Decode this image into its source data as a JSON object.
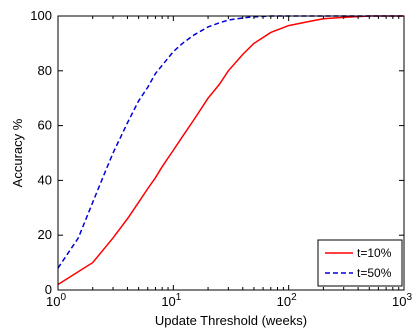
{
  "chart_data": {
    "type": "line",
    "xlabel": "Update Threshold (weeks)",
    "ylabel": "Accuracy %",
    "xscale": "log",
    "xlim": [
      1,
      1000
    ],
    "ylim": [
      0,
      100
    ],
    "xticks": [
      {
        "value": 1,
        "base": "10",
        "exp": "0"
      },
      {
        "value": 10,
        "base": "10",
        "exp": "1"
      },
      {
        "value": 100,
        "base": "10",
        "exp": "2"
      },
      {
        "value": 1000,
        "base": "10",
        "exp": "3"
      }
    ],
    "yticks": [
      0,
      20,
      40,
      60,
      80,
      100
    ],
    "grid": false,
    "legend_position": "bottom-right",
    "series": [
      {
        "name": "t=10%",
        "color": "#ff0000",
        "dash": "solid",
        "x": [
          1,
          2,
          3,
          4,
          5,
          6,
          7,
          8,
          10,
          12,
          15,
          20,
          25,
          30,
          40,
          50,
          70,
          100,
          150,
          200,
          300,
          500,
          700,
          1000
        ],
        "y": [
          2,
          10,
          19,
          26,
          32,
          37,
          41,
          45,
          51,
          56,
          62,
          70,
          75,
          80,
          86,
          90,
          94,
          96.5,
          98,
          99,
          99.5,
          100,
          100,
          100
        ]
      },
      {
        "name": "t=50%",
        "color": "#0000dd",
        "dash": "dashed",
        "x": [
          1,
          1.5,
          2,
          2.5,
          3,
          4,
          5,
          6,
          7,
          8,
          10,
          12,
          15,
          20,
          25,
          30,
          40,
          50,
          70,
          100,
          150,
          200,
          300,
          500,
          1000
        ],
        "y": [
          8,
          19,
          32,
          42,
          50,
          61,
          69,
          74,
          79,
          82,
          87,
          90,
          93,
          96,
          97.5,
          98.5,
          99.3,
          99.7,
          100,
          100,
          100,
          100,
          100,
          100,
          100
        ]
      }
    ]
  }
}
